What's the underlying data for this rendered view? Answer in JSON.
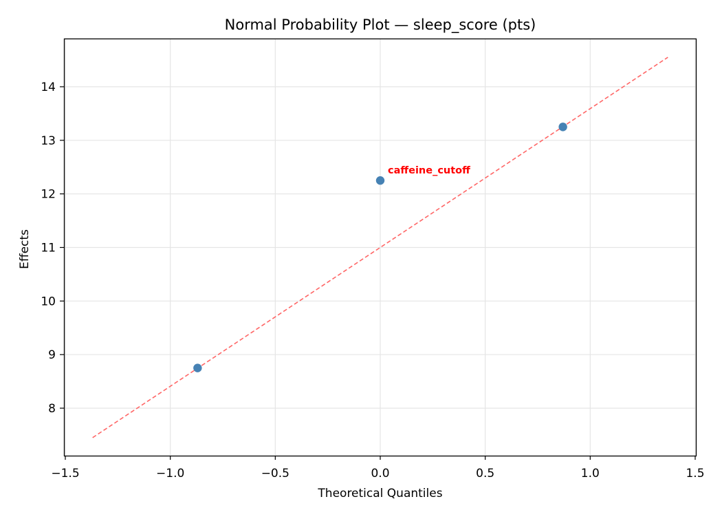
{
  "chart_data": {
    "type": "scatter",
    "title": "Normal Probability Plot — sleep_score (pts)",
    "xlabel": "Theoretical Quantiles",
    "ylabel": "Effects",
    "xlim": [
      -1.51,
      1.51
    ],
    "ylim": [
      7.1,
      14.9
    ],
    "xticks": [
      -1.5,
      -1.0,
      -0.5,
      0.0,
      0.5,
      1.0,
      1.5
    ],
    "xtick_labels": [
      "−1.5",
      "−1.0",
      "−0.5",
      "0.0",
      "0.5",
      "1.0",
      "1.5"
    ],
    "yticks": [
      8,
      9,
      10,
      11,
      12,
      13,
      14
    ],
    "ytick_labels": [
      "8",
      "9",
      "10",
      "11",
      "12",
      "13",
      "14"
    ],
    "grid": true,
    "series": [
      {
        "name": "effects",
        "color": "#4682b4",
        "points": [
          {
            "x": -0.87,
            "y": 8.75
          },
          {
            "x": 0.0,
            "y": 12.25
          },
          {
            "x": 0.87,
            "y": 13.25
          }
        ]
      }
    ],
    "reference_line": {
      "color": "#ff6666",
      "style": "dashed",
      "x": [
        -1.37,
        1.37
      ],
      "y": [
        7.45,
        14.55
      ]
    },
    "annotations": [
      {
        "text": "caffeine_cutoff",
        "x": 0.0,
        "y": 12.25,
        "color": "#ff0000",
        "bold": true
      }
    ]
  }
}
